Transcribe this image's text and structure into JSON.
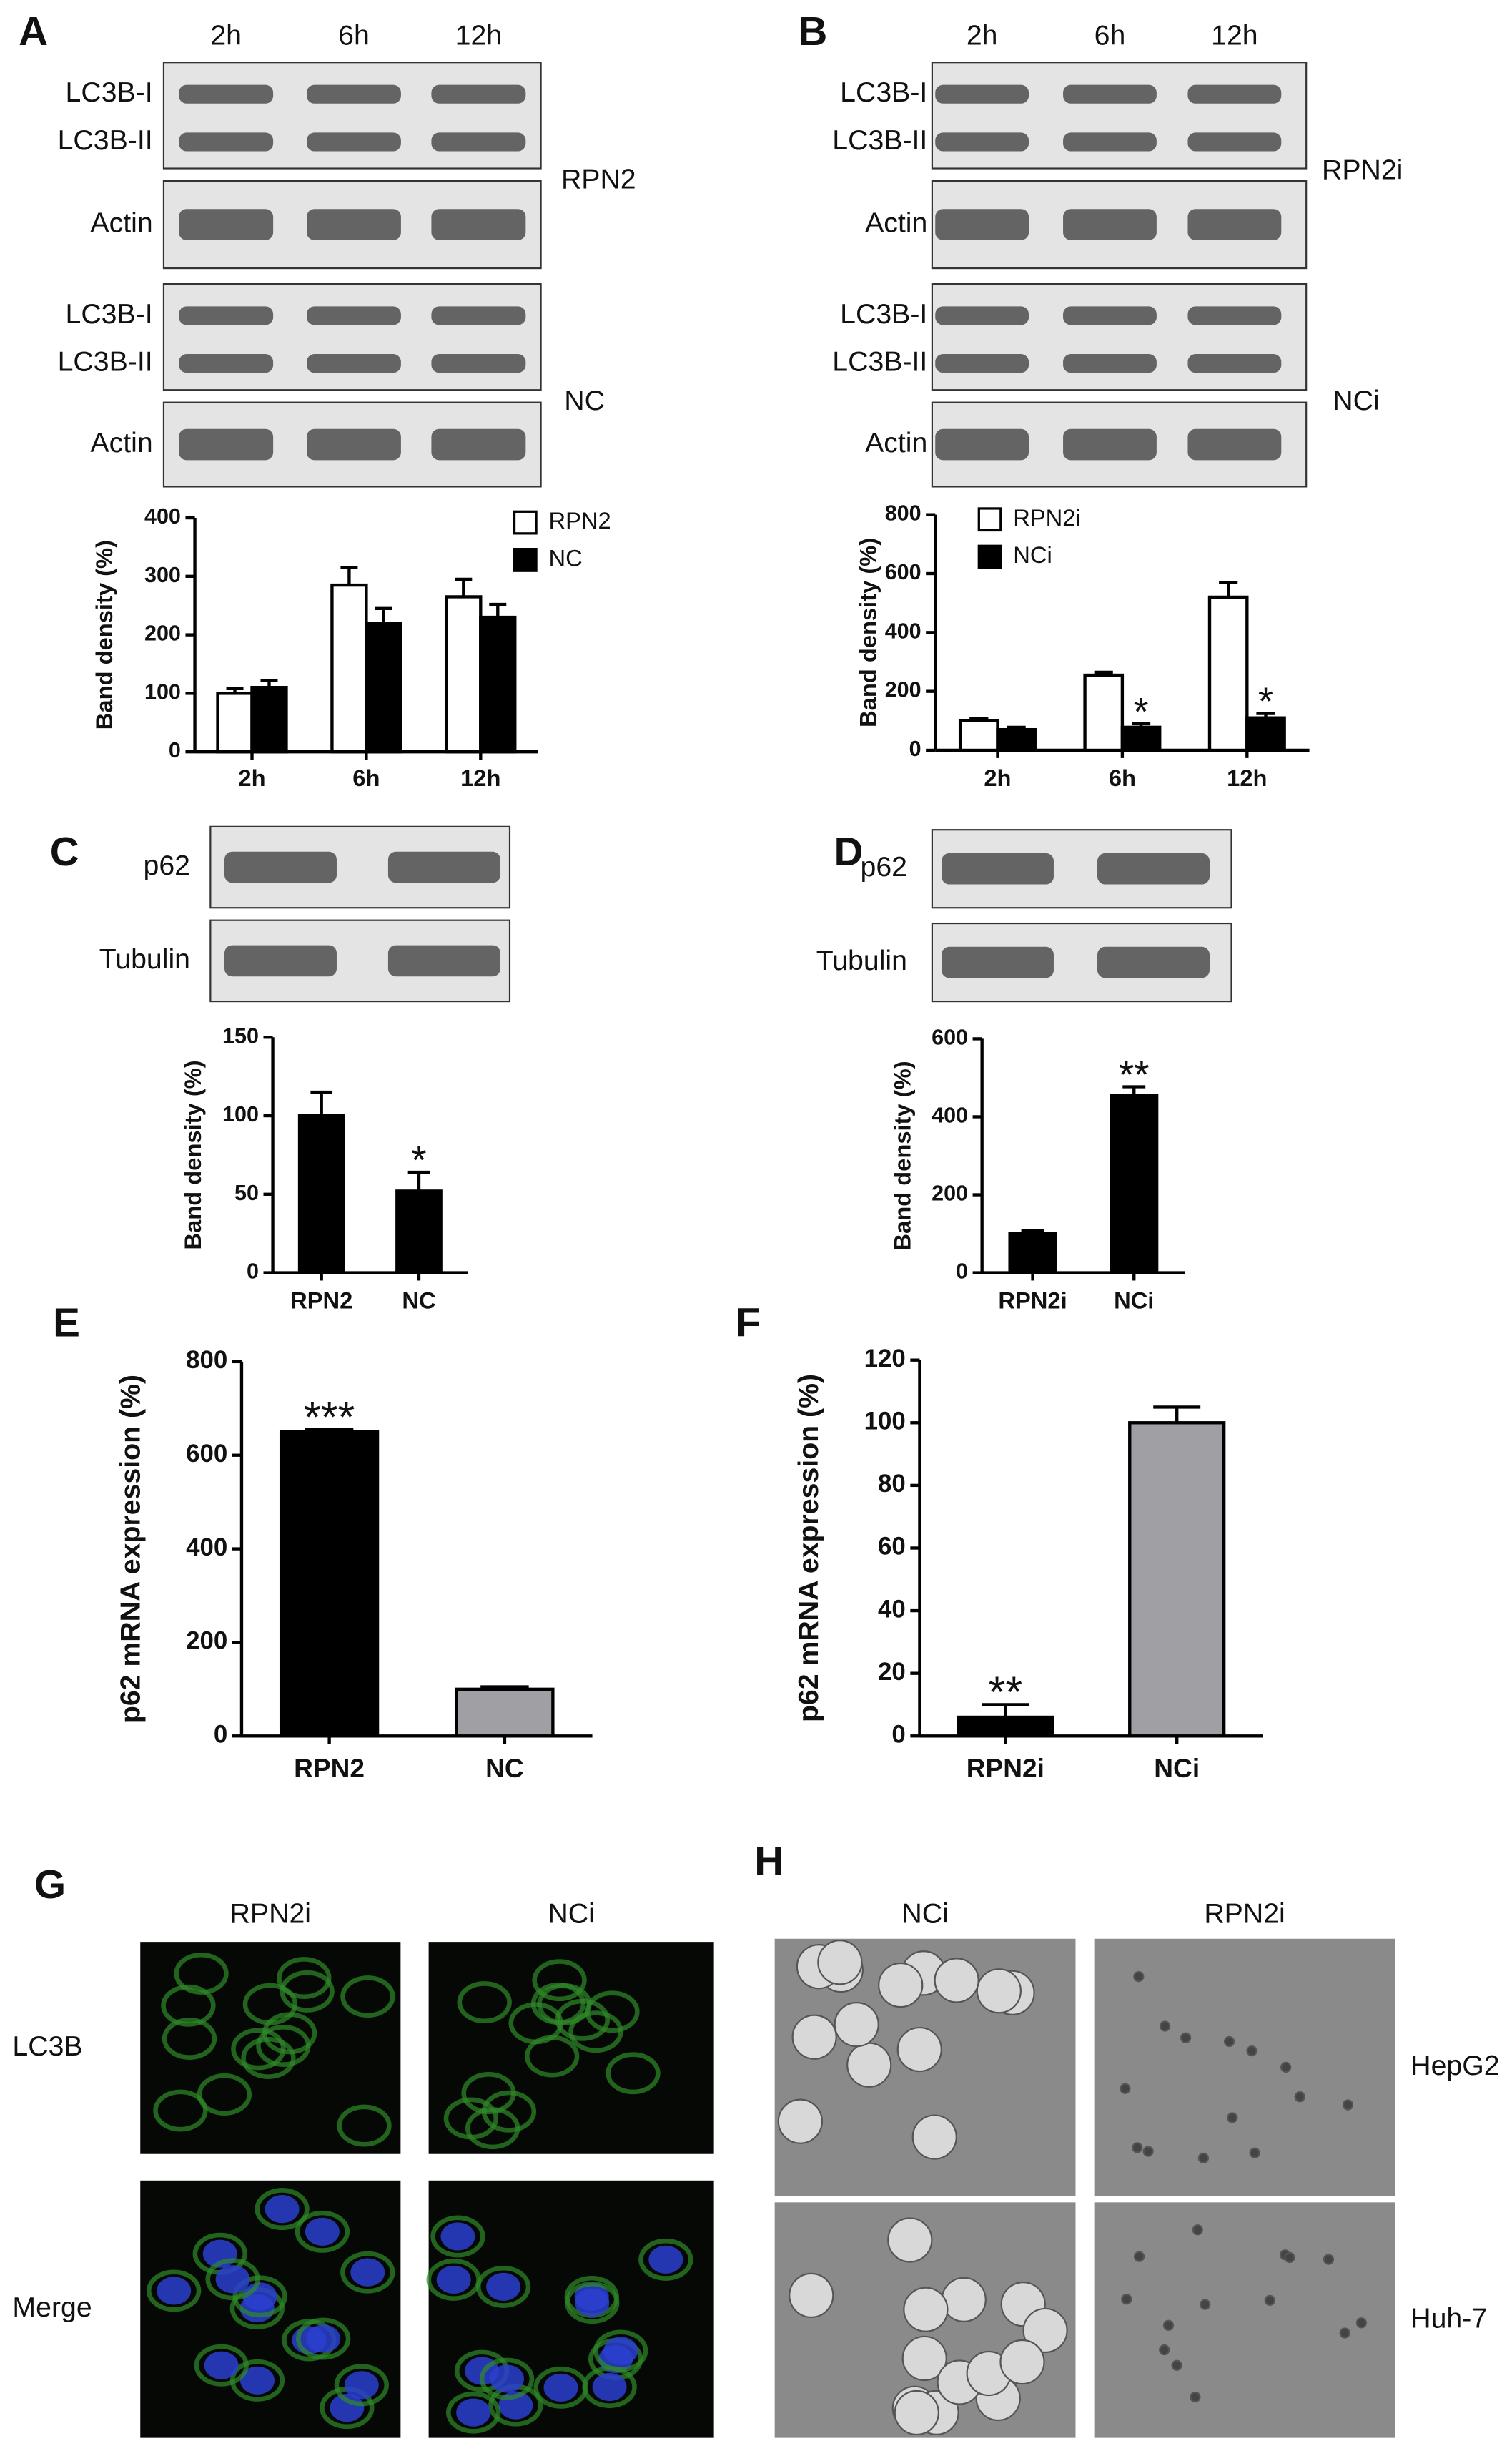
{
  "chart_data": [
    {
      "type": "bar",
      "ylabel": "Band density (%)",
      "categories": [
        "2h",
        "6h",
        "12h"
      ],
      "series": [
        {
          "name": "RPN2",
          "color": "#ffffff",
          "values": [
            100,
            285,
            265
          ],
          "errors": [
            8,
            30,
            30
          ]
        },
        {
          "name": "NC",
          "color": "#000000",
          "values": [
            110,
            220,
            230
          ],
          "errors": [
            12,
            25,
            22
          ]
        }
      ],
      "ylim": [
        0,
        400
      ],
      "yticks": [
        0,
        100,
        200,
        300,
        400
      ]
    },
    {
      "type": "bar",
      "ylabel": "Band density (%)",
      "categories": [
        "2h",
        "6h",
        "12h"
      ],
      "series": [
        {
          "name": "RPN2i",
          "color": "#ffffff",
          "values": [
            100,
            255,
            520
          ],
          "errors": [
            8,
            10,
            50
          ]
        },
        {
          "name": "NCi",
          "color": "#000000",
          "values": [
            70,
            78,
            110
          ],
          "errors": [
            8,
            12,
            15
          ],
          "annotations": [
            null,
            "*",
            "*"
          ]
        }
      ],
      "ylim": [
        0,
        800
      ],
      "yticks": [
        0,
        200,
        400,
        600,
        800
      ]
    },
    {
      "type": "bar",
      "ylabel": "Band density (%)",
      "categories": [
        "RPN2",
        "NC"
      ],
      "values": [
        100,
        52
      ],
      "errors": [
        15,
        12
      ],
      "colors": [
        "#000000",
        "#000000"
      ],
      "annotations": [
        null,
        "*"
      ],
      "ylim": [
        0,
        150
      ],
      "yticks": [
        0,
        50,
        100,
        150
      ]
    },
    {
      "type": "bar",
      "ylabel": "Band density (%)",
      "categories": [
        "RPN2i",
        "NCi"
      ],
      "values": [
        100,
        455
      ],
      "errors": [
        8,
        22
      ],
      "colors": [
        "#000000",
        "#000000"
      ],
      "annotations": [
        null,
        "**"
      ],
      "ylim": [
        0,
        600
      ],
      "yticks": [
        0,
        200,
        400,
        600
      ]
    },
    {
      "type": "bar",
      "panel": "E",
      "ylabel": "p62 mRNA expression (%)",
      "categories": [
        "RPN2",
        "NC"
      ],
      "values": [
        650,
        100
      ],
      "errors": [
        5,
        5
      ],
      "colors": [
        "#000000",
        "#a0a0a4"
      ],
      "annotations": [
        "***",
        null
      ],
      "ylim": [
        0,
        800
      ],
      "yticks": [
        0,
        200,
        400,
        600,
        800
      ]
    },
    {
      "type": "bar",
      "panel": "F",
      "ylabel": "p62 mRNA expression (%)",
      "categories": [
        "RPN2i",
        "NCi"
      ],
      "values": [
        6,
        100
      ],
      "errors": [
        4,
        5
      ],
      "colors": [
        "#000000",
        "#a0a0a4"
      ],
      "annotations": [
        "**",
        null
      ],
      "ylim": [
        0,
        120
      ],
      "yticks": [
        0,
        20,
        40,
        60,
        80,
        100,
        120
      ]
    }
  ],
  "blots": [
    {
      "panel": "A",
      "lanes": [
        "2h",
        "6h",
        "12h"
      ],
      "strips": [
        [
          "LC3B-I",
          "LC3B-II"
        ],
        [
          "Actin"
        ],
        [
          "LC3B-I",
          "LC3B-II"
        ],
        [
          "Actin"
        ]
      ],
      "groups": [
        "RPN2",
        "NC"
      ]
    },
    {
      "panel": "B",
      "lanes": [
        "2h",
        "6h",
        "12h"
      ],
      "strips": [
        [
          "LC3B-I",
          "LC3B-II"
        ],
        [
          "Actin"
        ],
        [
          "LC3B-I",
          "LC3B-II"
        ],
        [
          "Actin"
        ]
      ],
      "groups": [
        "RPN2i",
        "NCi"
      ]
    },
    {
      "panel": "C",
      "strips": [
        [
          "p62"
        ],
        [
          "Tubulin"
        ]
      ]
    },
    {
      "panel": "D",
      "strips": [
        [
          "p62"
        ],
        [
          "Tubulin"
        ]
      ]
    }
  ],
  "images": [
    {
      "panel": "G",
      "columns": [
        "RPN2i",
        "NCi"
      ],
      "rows": [
        "LC3B",
        "Merge"
      ]
    },
    {
      "panel": "H",
      "columns": [
        "NCi",
        "RPN2i"
      ],
      "rows": [
        "HepG2",
        "Huh-7"
      ]
    }
  ]
}
